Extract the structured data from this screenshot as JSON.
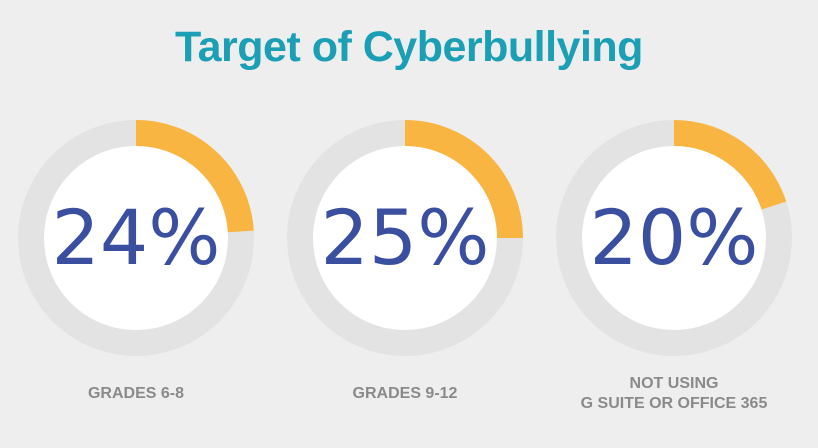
{
  "colors": {
    "title": "#1a9fb5",
    "ring_track": "#e3e3e3",
    "ring_fill": "#f9b541",
    "inner_circle": "#ffffff",
    "percent_text": "#3b4fa0",
    "label_text": "#8a8a8a",
    "background": "#eeeeee"
  },
  "chart_data": {
    "type": "pie",
    "title": "Target of Cyberbullying",
    "categories": [
      "GRADES 6-8",
      "GRADES 9-12",
      "NOT USING\nG SUITE  OR OFFICE 365"
    ],
    "values": [
      24,
      25,
      20
    ],
    "value_labels": [
      "24%",
      "25%",
      "20%"
    ],
    "unit": "percent",
    "style": "donut",
    "legend": "none"
  }
}
